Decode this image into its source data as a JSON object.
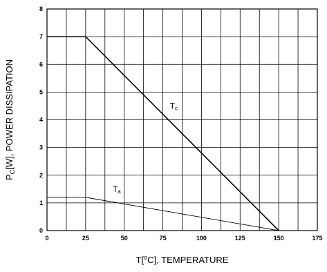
{
  "chart_data": {
    "type": "line",
    "title": "",
    "xlabel": {
      "prefix": "T[",
      "superscript": "o",
      "suffix": "C], TEMPERATURE"
    },
    "ylabel": {
      "prefix": "P",
      "subscript": "C",
      "suffix": "[W], POWER DISSIPATION"
    },
    "xlim": [
      0,
      175
    ],
    "ylim": [
      0,
      8
    ],
    "xticks": [
      0,
      25,
      50,
      75,
      100,
      125,
      150,
      175
    ],
    "yticks": [
      0,
      1,
      2,
      3,
      4,
      5,
      6,
      7,
      8
    ],
    "x_minor_step": 12.5,
    "grid": true,
    "series": [
      {
        "name": "Tc",
        "label": {
          "main": "T",
          "sub": "c"
        },
        "x": [
          0,
          25,
          150
        ],
        "y": [
          7,
          7,
          0
        ],
        "stroke": "#000000",
        "weight": "bold"
      },
      {
        "name": "Ta",
        "label": {
          "main": "T",
          "sub": "a"
        },
        "x": [
          0,
          25,
          150
        ],
        "y": [
          1.2,
          1.2,
          0
        ],
        "stroke": "#000000",
        "weight": "thin"
      }
    ]
  }
}
